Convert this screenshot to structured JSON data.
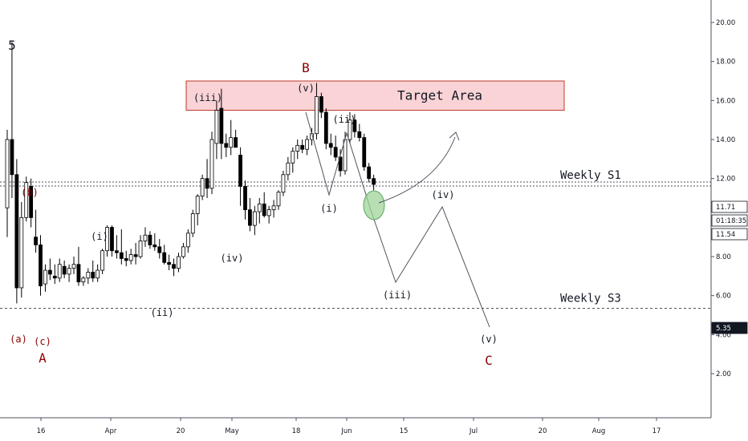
{
  "chart_data": {
    "type": "candlestick",
    "x_ticks": [
      "16",
      "Apr",
      "20",
      "May",
      "18",
      "Jun",
      "15",
      "Jul",
      "20",
      "Aug",
      "17"
    ],
    "y_ticks": [
      "2.00",
      "4.00",
      "6.00",
      "8.00",
      "10.00",
      "12.00",
      "14.00",
      "16.00",
      "18.00",
      "20.00",
      "22.00"
    ],
    "ylim": [
      0.8,
      22.2
    ],
    "price_labels": [
      "11.71",
      "01:18:35",
      "11.54",
      "5.35"
    ],
    "levels": [
      {
        "name": "Weekly S1",
        "value": 11.7
      },
      {
        "name": "Weekly S3",
        "value": 5.35
      }
    ],
    "target_area": {
      "label": "Target Area",
      "low": 15.5,
      "high": 17.0
    },
    "wave_labels": [
      {
        "text": "5",
        "color": "#131722"
      },
      {
        "text": "(a)",
        "color": "#8b0000"
      },
      {
        "text": "(b)",
        "color": "#8b0000"
      },
      {
        "text": "(c)",
        "color": "#8b0000"
      },
      {
        "text": "A",
        "color": "#8b0000"
      },
      {
        "text": "(i)",
        "color": "#131722"
      },
      {
        "text": "(ii)",
        "color": "#131722"
      },
      {
        "text": "(iii)",
        "color": "#131722"
      },
      {
        "text": "(iv)",
        "color": "#131722"
      },
      {
        "text": "B",
        "color": "#8b0000"
      },
      {
        "text": "(v)",
        "color": "#131722"
      },
      {
        "text": "(ii)",
        "color": "#131722"
      },
      {
        "text": "(i)",
        "color": "#131722"
      },
      {
        "text": "(iv)",
        "color": "#131722"
      },
      {
        "text": "(iii)",
        "color": "#131722"
      },
      {
        "text": "(v)",
        "color": "#131722"
      },
      {
        "text": "C",
        "color": "#8b0000"
      }
    ],
    "candles": [
      [
        10.5,
        14.5,
        9.0,
        14.0
      ],
      [
        14.0,
        19.0,
        11.0,
        12.2
      ],
      [
        12.2,
        13.0,
        5.6,
        6.4
      ],
      [
        6.4,
        10.8,
        5.9,
        10.0
      ],
      [
        10.0,
        12.1,
        9.8,
        11.8
      ],
      [
        11.6,
        12.0,
        9.5,
        10.0
      ],
      [
        9.0,
        10.4,
        8.2,
        8.6
      ],
      [
        8.6,
        9.1,
        6.0,
        6.5
      ],
      [
        6.6,
        7.6,
        6.2,
        7.3
      ],
      [
        7.3,
        7.9,
        6.8,
        7.1
      ],
      [
        7.0,
        7.6,
        6.6,
        6.9
      ],
      [
        6.9,
        7.9,
        6.7,
        7.6
      ],
      [
        7.5,
        7.8,
        6.9,
        7.1
      ],
      [
        7.1,
        7.6,
        6.7,
        7.4
      ],
      [
        7.4,
        8.0,
        7.1,
        7.6
      ],
      [
        7.6,
        8.5,
        6.5,
        6.7
      ],
      [
        6.7,
        7.0,
        6.5,
        6.9
      ],
      [
        6.9,
        7.4,
        6.6,
        7.2
      ],
      [
        7.2,
        7.8,
        6.7,
        6.9
      ],
      [
        6.9,
        7.6,
        6.7,
        7.3
      ],
      [
        7.3,
        8.4,
        7.1,
        8.3
      ],
      [
        8.3,
        9.6,
        8.0,
        9.5
      ],
      [
        9.5,
        9.6,
        8.0,
        8.3
      ],
      [
        8.3,
        9.1,
        7.9,
        8.2
      ],
      [
        8.2,
        9.4,
        7.6,
        7.9
      ],
      [
        7.9,
        8.3,
        7.5,
        7.8
      ],
      [
        7.8,
        8.4,
        7.6,
        8.1
      ],
      [
        8.1,
        8.7,
        7.6,
        8.0
      ],
      [
        8.0,
        9.1,
        7.9,
        8.8
      ],
      [
        8.8,
        9.5,
        8.5,
        9.1
      ],
      [
        9.1,
        9.3,
        8.4,
        8.6
      ],
      [
        8.6,
        9.2,
        8.3,
        8.5
      ],
      [
        8.5,
        8.9,
        7.9,
        8.2
      ],
      [
        8.2,
        8.6,
        7.6,
        7.7
      ],
      [
        7.7,
        8.1,
        7.3,
        7.6
      ],
      [
        7.6,
        7.9,
        7.0,
        7.4
      ],
      [
        7.4,
        8.2,
        7.2,
        8.0
      ],
      [
        8.0,
        8.7,
        7.9,
        8.5
      ],
      [
        8.5,
        9.4,
        8.2,
        9.2
      ],
      [
        9.2,
        10.4,
        9.0,
        10.2
      ],
      [
        10.2,
        11.2,
        9.6,
        11.1
      ],
      [
        11.1,
        12.2,
        10.9,
        12.0
      ],
      [
        12.0,
        13.0,
        11.0,
        11.5
      ],
      [
        11.5,
        14.4,
        11.2,
        14.0
      ],
      [
        13.8,
        16.0,
        13.0,
        15.5
      ],
      [
        15.6,
        16.6,
        13.0,
        13.8
      ],
      [
        13.8,
        14.3,
        13.1,
        13.6
      ],
      [
        13.6,
        15.0,
        13.2,
        14.1
      ],
      [
        14.1,
        14.5,
        13.8,
        13.6
      ],
      [
        13.2,
        13.6,
        10.6,
        11.6
      ],
      [
        11.6,
        11.9,
        9.9,
        10.4
      ],
      [
        10.4,
        11.0,
        9.3,
        9.6
      ],
      [
        9.6,
        10.6,
        9.1,
        10.3
      ],
      [
        10.3,
        11.0,
        9.7,
        10.7
      ],
      [
        10.7,
        11.3,
        10.0,
        10.1
      ],
      [
        10.1,
        10.6,
        9.7,
        10.4
      ],
      [
        10.4,
        10.9,
        10.0,
        10.6
      ],
      [
        10.6,
        11.4,
        10.4,
        11.3
      ],
      [
        11.3,
        12.4,
        11.1,
        12.2
      ],
      [
        12.2,
        13.1,
        11.9,
        12.8
      ],
      [
        12.8,
        13.6,
        12.3,
        13.4
      ],
      [
        13.4,
        14.0,
        13.0,
        13.7
      ],
      [
        13.7,
        14.0,
        13.3,
        13.5
      ],
      [
        13.5,
        14.2,
        13.2,
        14.0
      ],
      [
        14.0,
        14.6,
        13.7,
        14.3
      ],
      [
        14.3,
        16.9,
        14.0,
        16.2
      ],
      [
        16.2,
        16.4,
        15.1,
        15.4
      ],
      [
        15.4,
        15.6,
        13.5,
        13.8
      ],
      [
        13.8,
        14.3,
        13.2,
        13.6
      ],
      [
        13.6,
        14.2,
        12.9,
        13.1
      ],
      [
        13.1,
        13.5,
        12.1,
        12.4
      ],
      [
        12.4,
        14.4,
        12.2,
        14.0
      ],
      [
        14.0,
        15.4,
        13.8,
        15.0
      ],
      [
        15.0,
        15.3,
        14.1,
        14.4
      ],
      [
        14.4,
        14.8,
        13.9,
        14.1
      ],
      [
        14.1,
        14.3,
        12.4,
        12.6
      ],
      [
        12.6,
        12.8,
        11.8,
        12.0
      ],
      [
        12.0,
        12.2,
        11.4,
        11.7
      ]
    ]
  }
}
